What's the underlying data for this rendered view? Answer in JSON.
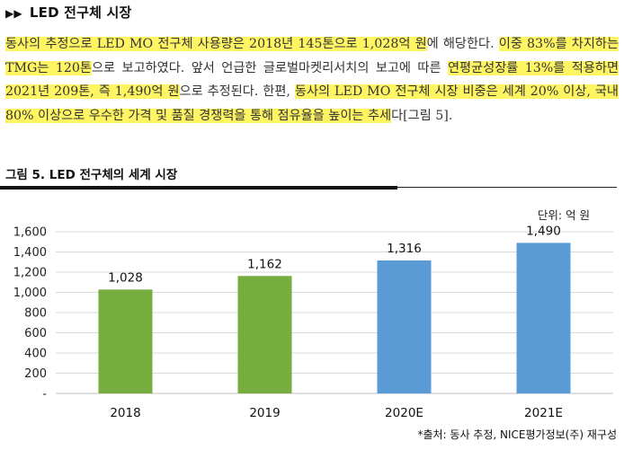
{
  "header": {
    "arrows": "▶▶",
    "title": "LED 전구체 시장"
  },
  "paragraph": [
    {
      "text": "동사의 추정으로 LED MO 전구체 사용량은 2018년 145톤으로 1,028억 원",
      "hl": true
    },
    {
      "text": "에 해당한다. ",
      "hl": false
    },
    {
      "text": "이중 83%를 차지하는 TMG는 120톤",
      "hl": true
    },
    {
      "text": "으로 보고하였다. 앞서 언급한 글로벌마켓리서치의 보고에 따른 ",
      "hl": false
    },
    {
      "text": "연평균성장률 13%를 적용하면 2021년 209톤, 즉 1,490억 원",
      "hl": true
    },
    {
      "text": "으로 추정된다. 한편, ",
      "hl": false
    },
    {
      "text": "동사의 LED MO 전구체 시장 비중은 세계 20% 이상, 국내 80% 이상으로 우수한 가격 및 품질 경쟁력을 통해 점유율을 높이는 추세",
      "hl": true
    },
    {
      "text": "다[그림 5].",
      "hl": false
    }
  ],
  "figure": {
    "title": "그림 5. LED 전구체의 세계 시장",
    "unit": "단위: 억 원",
    "source": "*출처: 동사 추정, NICE평가정보(주) 재구성"
  },
  "chart_data": {
    "type": "bar",
    "categories": [
      "2018",
      "2019",
      "2020E",
      "2021E"
    ],
    "values": [
      1028,
      1162,
      1316,
      1490
    ],
    "value_labels": [
      "1,028",
      "1,162",
      "1,316",
      "1,490"
    ],
    "colors": [
      "#77ac3e",
      "#77ac3e",
      "#5b9bd5",
      "#5b9bd5"
    ],
    "ylim": [
      0,
      1600
    ],
    "yticks": [
      0,
      200,
      400,
      600,
      800,
      1000,
      1200,
      1400,
      1600
    ],
    "ytick_labels": [
      "-",
      "200",
      "400",
      "600",
      "800",
      "1,000",
      "1,200",
      "1,400",
      "1,600"
    ],
    "grid": true
  }
}
